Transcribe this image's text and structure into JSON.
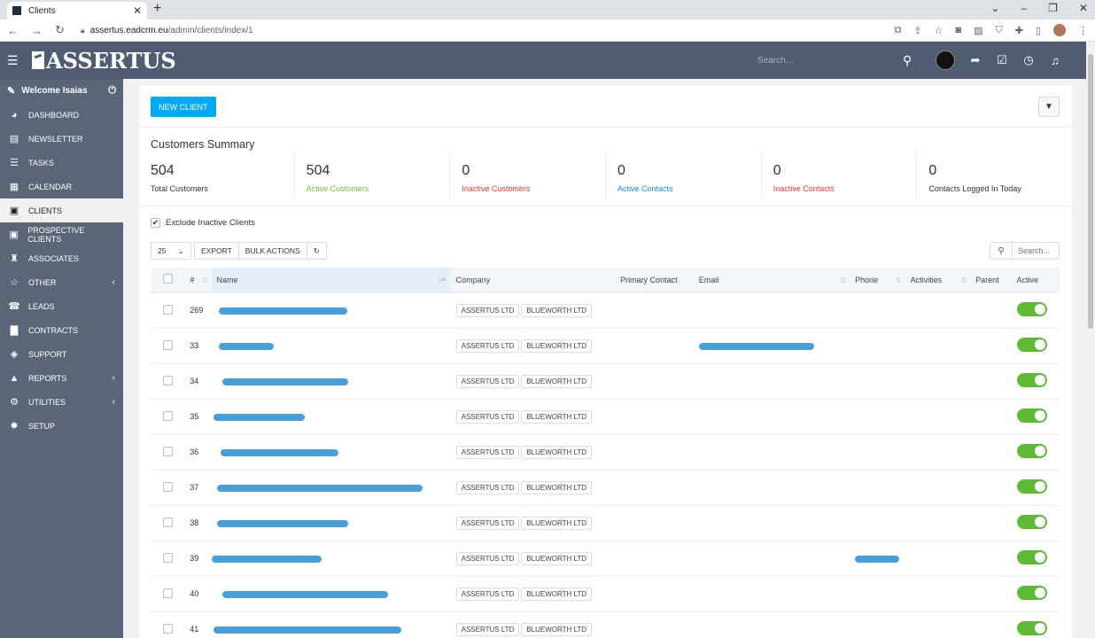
{
  "browser": {
    "tab_title": "Clients",
    "url_host": "assertus.eadcrm.eu",
    "url_path": "/admin/clients/index/1"
  },
  "header": {
    "logo": "ASSERTUS",
    "search_placeholder": "Search..."
  },
  "sidebar": {
    "welcome": "Welcome Isaias",
    "items": [
      {
        "label": "DASHBOARD",
        "icon": "dashboard-icon",
        "glyph": "◕",
        "chevron": false
      },
      {
        "label": "NEWSLETTER",
        "icon": "newsletter-icon",
        "glyph": "▤",
        "chevron": false
      },
      {
        "label": "TASKS",
        "icon": "tasks-icon",
        "glyph": "☰",
        "chevron": false
      },
      {
        "label": "CALENDAR",
        "icon": "calendar-icon",
        "glyph": "▦",
        "chevron": false
      },
      {
        "label": "CLIENTS",
        "icon": "clients-icon",
        "glyph": "▣",
        "chevron": false
      },
      {
        "label": "PROSPECTIVE CLIENTS",
        "icon": "prospective-clients-icon",
        "glyph": "▣",
        "chevron": false
      },
      {
        "label": "ASSOCIATES",
        "icon": "associates-icon",
        "glyph": "♜",
        "chevron": false
      },
      {
        "label": "OTHER",
        "icon": "star-icon",
        "glyph": "☆",
        "chevron": true
      },
      {
        "label": "LEADS",
        "icon": "leads-icon",
        "glyph": "☎",
        "chevron": false
      },
      {
        "label": "CONTRACTS",
        "icon": "contracts-icon",
        "glyph": "▇",
        "chevron": false
      },
      {
        "label": "SUPPORT",
        "icon": "support-icon",
        "glyph": "◈",
        "chevron": false
      },
      {
        "label": "REPORTS",
        "icon": "reports-icon",
        "glyph": "▲",
        "chevron": true
      },
      {
        "label": "UTILITIES",
        "icon": "utilities-icon",
        "glyph": "⚙",
        "chevron": true
      },
      {
        "label": "SETUP",
        "icon": "setup-icon",
        "glyph": "✹",
        "chevron": false
      }
    ],
    "active_index": 4
  },
  "main": {
    "new_client_label": "NEW CLIENT",
    "summary_title": "Customers Summary",
    "stats": [
      {
        "value": "504",
        "label": "Total Customers",
        "color": "#333333"
      },
      {
        "value": "504",
        "label": "Active Customers",
        "color": "#7cb342"
      },
      {
        "value": "0",
        "label": "Inactive Customers",
        "color": "#e53935"
      },
      {
        "value": "0",
        "label": "Active Contacts",
        "color": "#1e88e5"
      },
      {
        "value": "0",
        "label": "Inactive Contacts",
        "color": "#e53935"
      },
      {
        "value": "0",
        "label": "Contacts Logged In Today",
        "color": "#333333"
      }
    ],
    "exclude_label": "Exclude Inactive Clients",
    "page_size": "25",
    "export_label": "EXPORT",
    "bulk_label": "BULK ACTIONS",
    "search_placeholder": "Search...",
    "columns": [
      "#",
      "Name",
      "Company",
      "Primary Contact",
      "Email",
      "Phone",
      "Activities",
      "Parent",
      "Active"
    ],
    "rows": [
      {
        "id": "269",
        "companies": [
          "ASSERTUS LTD",
          "BLUEWORTH LTD"
        ],
        "email": false,
        "phone": false
      },
      {
        "id": "33",
        "companies": [
          "ASSERTUS LTD",
          "BLUEWORTH LTD"
        ],
        "email": true,
        "phone": false
      },
      {
        "id": "34",
        "companies": [
          "ASSERTUS LTD",
          "BLUEWORTH LTD"
        ],
        "email": false,
        "phone": false
      },
      {
        "id": "35",
        "companies": [
          "ASSERTUS LTD",
          "BLUEWORTH LTD"
        ],
        "email": false,
        "phone": false
      },
      {
        "id": "36",
        "companies": [
          "ASSERTUS LTD",
          "BLUEWORTH LTD"
        ],
        "email": false,
        "phone": false
      },
      {
        "id": "37",
        "companies": [
          "ASSERTUS LTD",
          "BLUEWORTH LTD"
        ],
        "email": false,
        "phone": false
      },
      {
        "id": "38",
        "companies": [
          "ASSERTUS LTD",
          "BLUEWORTH LTD"
        ],
        "email": false,
        "phone": false
      },
      {
        "id": "39",
        "companies": [
          "ASSERTUS LTD",
          "BLUEWORTH LTD"
        ],
        "email": false,
        "phone": true
      },
      {
        "id": "40",
        "companies": [
          "ASSERTUS LTD",
          "BLUEWORTH LTD"
        ],
        "email": false,
        "phone": false
      },
      {
        "id": "41",
        "companies": [
          "ASSERTUS LTD",
          "BLUEWORTH LTD"
        ],
        "email": false,
        "phone": false
      }
    ],
    "active_color": "#5fba35"
  }
}
